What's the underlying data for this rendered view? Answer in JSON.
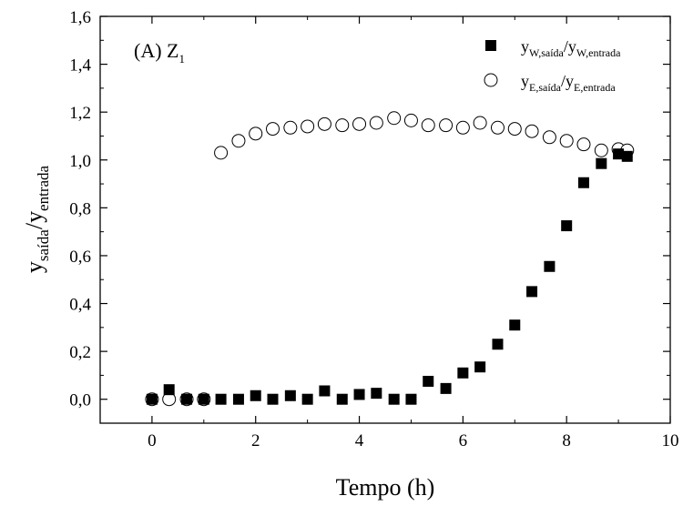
{
  "chart_data": {
    "type": "scatter",
    "title": "",
    "panel_label": "(A)  Z",
    "panel_label_sub": "1",
    "xlabel": "Tempo (h)",
    "ylabel_main": "y",
    "ylabel_sub1": "saída",
    "ylabel_slash": "/y",
    "ylabel_sub2": "entrada",
    "xlim": [
      -1,
      10
    ],
    "ylim": [
      -0.1,
      1.6
    ],
    "x_ticks": [
      0,
      2,
      4,
      6,
      8,
      10
    ],
    "x_tick_labels": [
      "0",
      "2",
      "4",
      "6",
      "8",
      "10"
    ],
    "y_ticks": [
      0.0,
      0.2,
      0.4,
      0.6,
      0.8,
      1.0,
      1.2,
      1.4,
      1.6
    ],
    "y_tick_labels": [
      "0,0",
      "0,2",
      "0,4",
      "0,6",
      "0,8",
      "1,0",
      "1,2",
      "1,4",
      "1,6"
    ],
    "grid": false,
    "legend_position": "top-right",
    "series": [
      {
        "marker": "filled-square",
        "legend": {
          "main": "y",
          "sub1": "W,saída",
          "slash": "/y",
          "sub2": "W,entrada"
        },
        "x": [
          0,
          0.33,
          0.67,
          1.0,
          1.33,
          1.67,
          2.0,
          2.33,
          2.67,
          3.0,
          3.33,
          3.67,
          4.0,
          4.33,
          4.67,
          5.0,
          5.33,
          5.67,
          6.0,
          6.33,
          6.67,
          7.0,
          7.33,
          7.67,
          8.0,
          8.33,
          8.67,
          9.0,
          9.17
        ],
        "y": [
          0.0,
          0.04,
          0.0,
          0.0,
          0.0,
          0.0,
          0.015,
          0.0,
          0.015,
          0.0,
          0.035,
          0.0,
          0.02,
          0.025,
          0.0,
          0.0,
          0.075,
          0.045,
          0.11,
          0.135,
          0.23,
          0.31,
          0.45,
          0.555,
          0.725,
          0.905,
          0.985,
          1.025,
          1.015
        ]
      },
      {
        "marker": "open-circle",
        "legend": {
          "main": "y",
          "sub1": "E,saída",
          "slash": "/y",
          "sub2": "E,entrada"
        },
        "x": [
          0,
          0.33,
          0.67,
          1.0,
          1.33,
          1.67,
          2.0,
          2.33,
          2.67,
          3.0,
          3.33,
          3.67,
          4.0,
          4.33,
          4.67,
          5.0,
          5.33,
          5.67,
          6.0,
          6.33,
          6.67,
          7.0,
          7.33,
          7.67,
          8.0,
          8.33,
          8.67,
          9.0,
          9.17
        ],
        "y": [
          0.0,
          0.0,
          0.0,
          0.0,
          1.03,
          1.08,
          1.11,
          1.13,
          1.135,
          1.14,
          1.15,
          1.145,
          1.15,
          1.155,
          1.175,
          1.165,
          1.145,
          1.145,
          1.135,
          1.155,
          1.135,
          1.13,
          1.12,
          1.095,
          1.08,
          1.065,
          1.04,
          1.045,
          1.04
        ]
      }
    ]
  }
}
